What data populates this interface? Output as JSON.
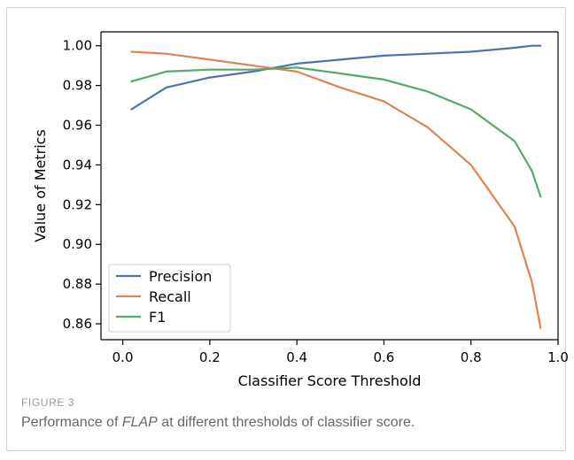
{
  "figure": {
    "label": "FIGURE 3",
    "caption_before": "Performance of ",
    "caption_em": "FLAP",
    "caption_after": " at different thresholds of classifier score."
  },
  "chart_data": {
    "type": "line",
    "xlabel": "Classifier Score Threshold",
    "ylabel": "Value of Metrics",
    "xlim": [
      -0.05,
      1.0
    ],
    "ylim": [
      0.852,
      1.007
    ],
    "xticks": [
      0.0,
      0.2,
      0.4,
      0.6,
      0.8,
      1.0
    ],
    "xtick_labels": [
      "0.0",
      "0.2",
      "0.4",
      "0.6",
      "0.8",
      "1.0"
    ],
    "yticks": [
      0.86,
      0.88,
      0.9,
      0.92,
      0.94,
      0.96,
      0.98,
      1.0
    ],
    "ytick_labels": [
      "0.86",
      "0.88",
      "0.90",
      "0.92",
      "0.94",
      "0.96",
      "0.98",
      "1.00"
    ],
    "grid": false,
    "legend_position": "bottom-left",
    "x": [
      0.02,
      0.1,
      0.2,
      0.3,
      0.4,
      0.5,
      0.6,
      0.7,
      0.8,
      0.9,
      0.94,
      0.96
    ],
    "series": [
      {
        "name": "Precision",
        "color": "#4c72b0",
        "values": [
          0.968,
          0.979,
          0.984,
          0.987,
          0.991,
          0.993,
          0.995,
          0.996,
          0.997,
          0.999,
          1.0,
          1.0
        ]
      },
      {
        "name": "Recall",
        "color": "#dd8452",
        "values": [
          0.997,
          0.996,
          0.993,
          0.99,
          0.987,
          0.979,
          0.972,
          0.959,
          0.94,
          0.909,
          0.881,
          0.858
        ]
      },
      {
        "name": "F1",
        "color": "#55a868",
        "values": [
          0.982,
          0.987,
          0.988,
          0.988,
          0.989,
          0.986,
          0.983,
          0.977,
          0.968,
          0.952,
          0.937,
          0.924
        ]
      }
    ]
  }
}
